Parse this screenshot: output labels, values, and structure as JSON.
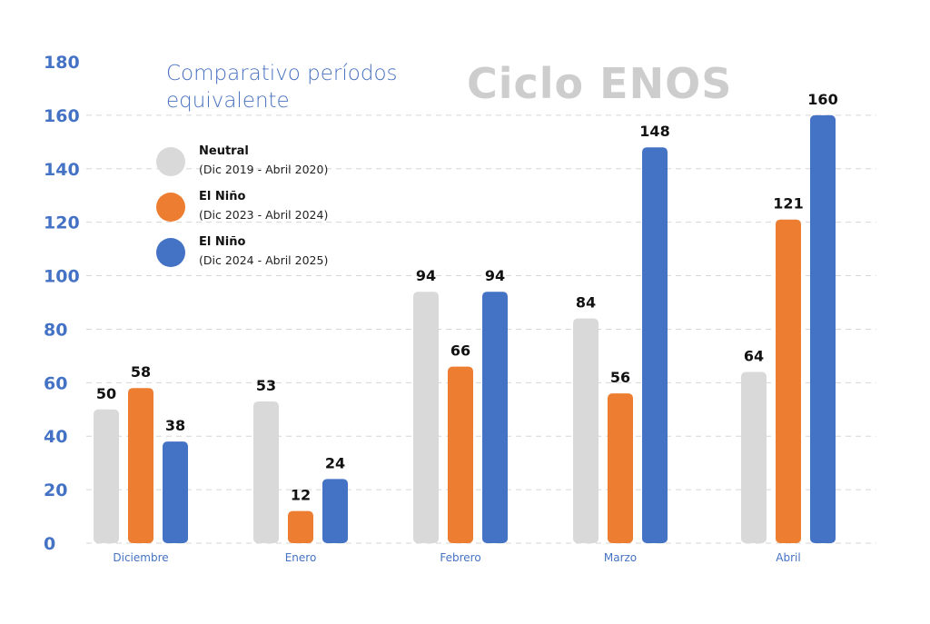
{
  "chart_data": {
    "type": "bar",
    "title": "Ciclo ENOS",
    "subtitle": "Comparativo períodos equivalente",
    "categories": [
      "Diciembre",
      "Enero",
      "Febrero",
      "Marzo",
      "Abril"
    ],
    "series": [
      {
        "name": "Neutral",
        "period": "(Dic 2019 - Abril 2020)",
        "color": "#d9d9d9",
        "values": [
          50,
          53,
          94,
          84,
          64
        ]
      },
      {
        "name": "El Niño",
        "period": "(Dic 2023 - Abril 2024)",
        "color": "#ed7d31",
        "values": [
          58,
          12,
          66,
          56,
          121
        ]
      },
      {
        "name": "El Niño",
        "period": "(Dic 2024 - Abril 2025)",
        "color": "#4472c4",
        "values": [
          38,
          24,
          94,
          148,
          160
        ]
      }
    ],
    "yticks": [
      0,
      20,
      40,
      60,
      80,
      100,
      120,
      140,
      160,
      180
    ],
    "ylim": [
      0,
      180
    ],
    "grid": true,
    "legend": "top-left",
    "axis_color": "#4472c4"
  }
}
